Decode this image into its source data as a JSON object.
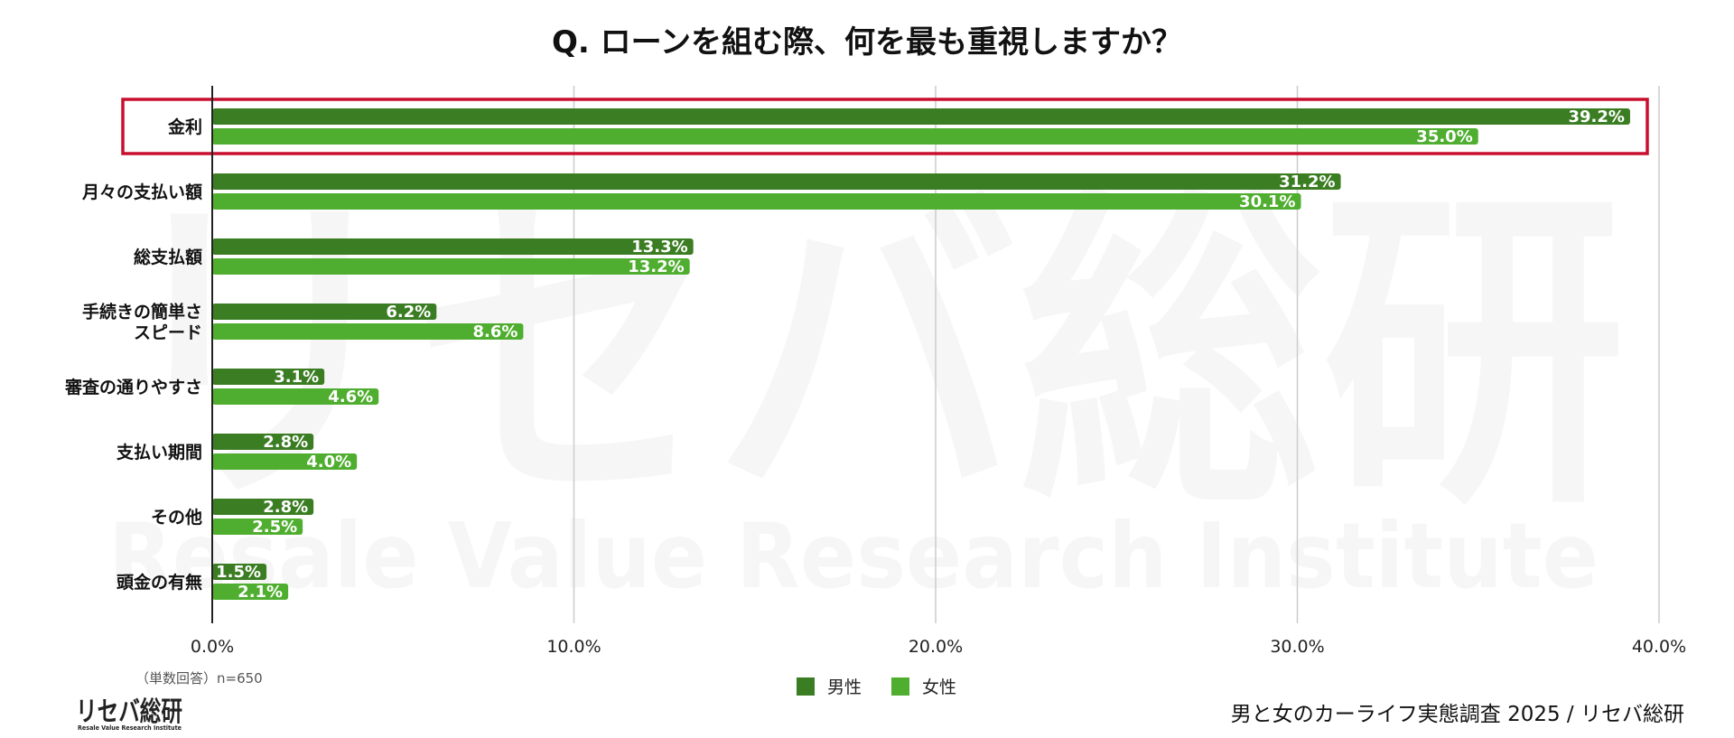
{
  "chart_data": {
    "type": "bar",
    "orientation": "horizontal",
    "title": "Q. ローンを組む際、何を最も重視しますか？",
    "categories": [
      [
        "金利"
      ],
      [
        "月々の支払い額"
      ],
      [
        "総支払額"
      ],
      [
        "手続きの簡単さ",
        "スピード"
      ],
      [
        "審査の通りやすさ"
      ],
      [
        "支払い期間"
      ],
      [
        "その他"
      ],
      [
        "頭金の有無"
      ]
    ],
    "series": [
      {
        "name": "男性",
        "color": "#3b7d22",
        "values": [
          39.2,
          31.2,
          13.3,
          6.2,
          3.1,
          2.8,
          2.8,
          1.5
        ]
      },
      {
        "name": "女性",
        "color": "#4fae2f",
        "values": [
          35.0,
          30.1,
          13.2,
          8.6,
          4.6,
          4.0,
          2.5,
          2.1
        ]
      }
    ],
    "x_ticks": [
      "0.0%",
      "10.0%",
      "20.0%",
      "30.0%",
      "40.0%"
    ],
    "xlim": [
      0,
      40
    ],
    "grid": true,
    "legend_position": "bottom-center",
    "highlight_category": "金利",
    "highlight_color": "#c8102e"
  },
  "note": "（単数回答）n=650",
  "source": "男と女のカーライフ実態調査 2025 / リセバ総研",
  "logo": {
    "main": "リセバ総研",
    "sub": "Resale Value Research Institute"
  },
  "watermark": {
    "main": "リセバ総研",
    "sub": "Resale Value Research Institute"
  }
}
